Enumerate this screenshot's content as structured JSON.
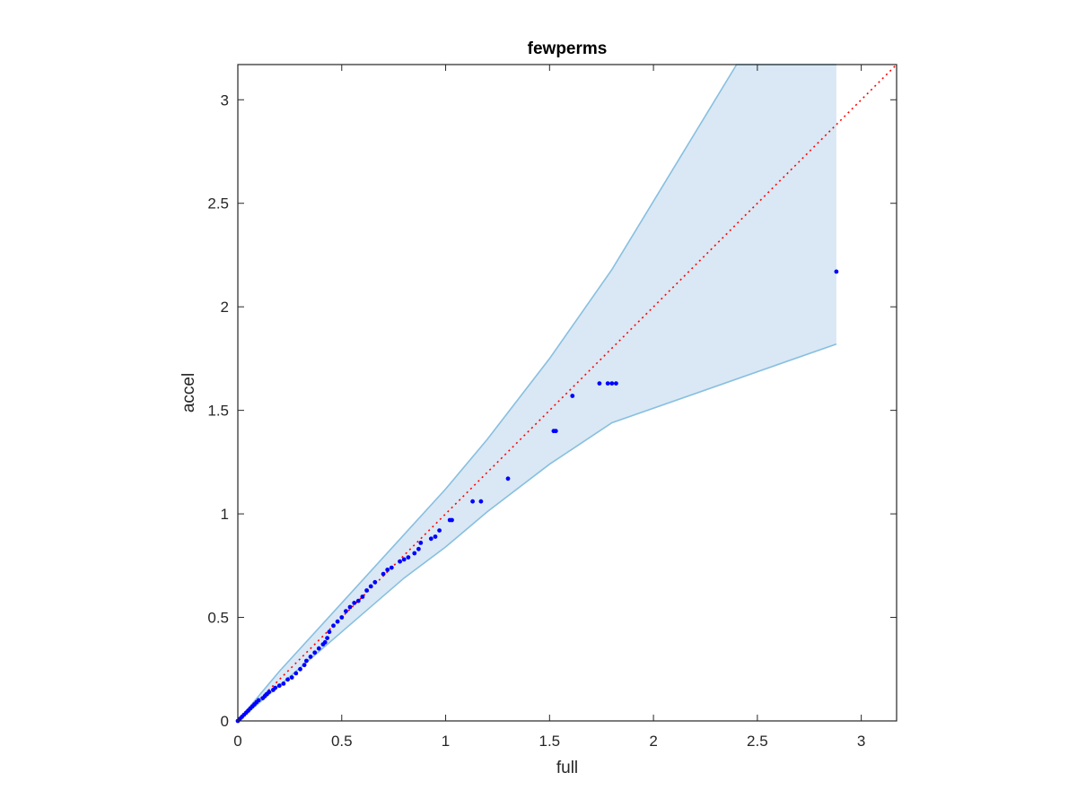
{
  "chart_data": {
    "type": "scatter",
    "title": "fewperms",
    "xlabel": "full",
    "ylabel": "accel",
    "xlim": [
      0,
      3.17
    ],
    "ylim": [
      0,
      3.17
    ],
    "xticks": [
      0,
      0.5,
      1,
      1.5,
      2,
      2.5,
      3
    ],
    "yticks": [
      0,
      0.5,
      1,
      1.5,
      2,
      2.5,
      3
    ],
    "xtick_labels": [
      "0",
      "0.5",
      "1",
      "1.5",
      "2",
      "2.5",
      "3"
    ],
    "ytick_labels": [
      "0",
      "0.5",
      "1",
      "1.5",
      "2",
      "2.5",
      "3"
    ],
    "grid": false,
    "colors": {
      "band_fill": "#d9e8f4",
      "band_edge": "#88bfe0",
      "points": "#0000ff",
      "reference": "#ff0000",
      "axes": "#262626"
    },
    "band": {
      "upper": [
        [
          0,
          0
        ],
        [
          0.2,
          0.24
        ],
        [
          0.5,
          0.57
        ],
        [
          0.8,
          0.9
        ],
        [
          1.0,
          1.12
        ],
        [
          1.2,
          1.36
        ],
        [
          1.5,
          1.75
        ],
        [
          1.8,
          2.18
        ],
        [
          2.4,
          3.17
        ],
        [
          2.88,
          3.17
        ]
      ],
      "lower": [
        [
          0,
          0
        ],
        [
          0.2,
          0.17
        ],
        [
          0.5,
          0.43
        ],
        [
          0.8,
          0.69
        ],
        [
          1.0,
          0.84
        ],
        [
          1.2,
          1.01
        ],
        [
          1.5,
          1.24
        ],
        [
          1.8,
          1.44
        ],
        [
          2.88,
          1.82
        ]
      ]
    },
    "reference_line": [
      [
        0,
        0
      ],
      [
        3.17,
        3.17
      ]
    ],
    "points": [
      [
        0.0,
        0.0
      ],
      [
        0.01,
        0.01
      ],
      [
        0.02,
        0.02
      ],
      [
        0.03,
        0.03
      ],
      [
        0.04,
        0.04
      ],
      [
        0.05,
        0.05
      ],
      [
        0.06,
        0.06
      ],
      [
        0.07,
        0.07
      ],
      [
        0.08,
        0.08
      ],
      [
        0.09,
        0.09
      ],
      [
        0.1,
        0.1
      ],
      [
        0.12,
        0.11
      ],
      [
        0.13,
        0.12
      ],
      [
        0.14,
        0.13
      ],
      [
        0.15,
        0.14
      ],
      [
        0.17,
        0.15
      ],
      [
        0.18,
        0.16
      ],
      [
        0.2,
        0.17
      ],
      [
        0.22,
        0.18
      ],
      [
        0.24,
        0.2
      ],
      [
        0.26,
        0.21
      ],
      [
        0.28,
        0.23
      ],
      [
        0.3,
        0.25
      ],
      [
        0.32,
        0.27
      ],
      [
        0.33,
        0.29
      ],
      [
        0.35,
        0.31
      ],
      [
        0.37,
        0.33
      ],
      [
        0.39,
        0.35
      ],
      [
        0.41,
        0.37
      ],
      [
        0.42,
        0.38
      ],
      [
        0.43,
        0.4
      ],
      [
        0.44,
        0.43
      ],
      [
        0.46,
        0.46
      ],
      [
        0.48,
        0.48
      ],
      [
        0.5,
        0.5
      ],
      [
        0.52,
        0.53
      ],
      [
        0.54,
        0.55
      ],
      [
        0.56,
        0.57
      ],
      [
        0.58,
        0.58
      ],
      [
        0.6,
        0.6
      ],
      [
        0.62,
        0.63
      ],
      [
        0.64,
        0.65
      ],
      [
        0.66,
        0.67
      ],
      [
        0.7,
        0.71
      ],
      [
        0.72,
        0.73
      ],
      [
        0.74,
        0.74
      ],
      [
        0.78,
        0.77
      ],
      [
        0.8,
        0.78
      ],
      [
        0.82,
        0.79
      ],
      [
        0.85,
        0.81
      ],
      [
        0.87,
        0.83
      ],
      [
        0.88,
        0.86
      ],
      [
        0.93,
        0.88
      ],
      [
        0.95,
        0.89
      ],
      [
        0.97,
        0.92
      ],
      [
        1.02,
        0.97
      ],
      [
        1.03,
        0.97
      ],
      [
        1.13,
        1.06
      ],
      [
        1.17,
        1.06
      ],
      [
        1.3,
        1.17
      ],
      [
        1.52,
        1.4
      ],
      [
        1.53,
        1.4
      ],
      [
        1.61,
        1.57
      ],
      [
        1.74,
        1.63
      ],
      [
        1.78,
        1.63
      ],
      [
        1.8,
        1.63
      ],
      [
        1.82,
        1.63
      ],
      [
        2.88,
        2.17
      ]
    ]
  }
}
